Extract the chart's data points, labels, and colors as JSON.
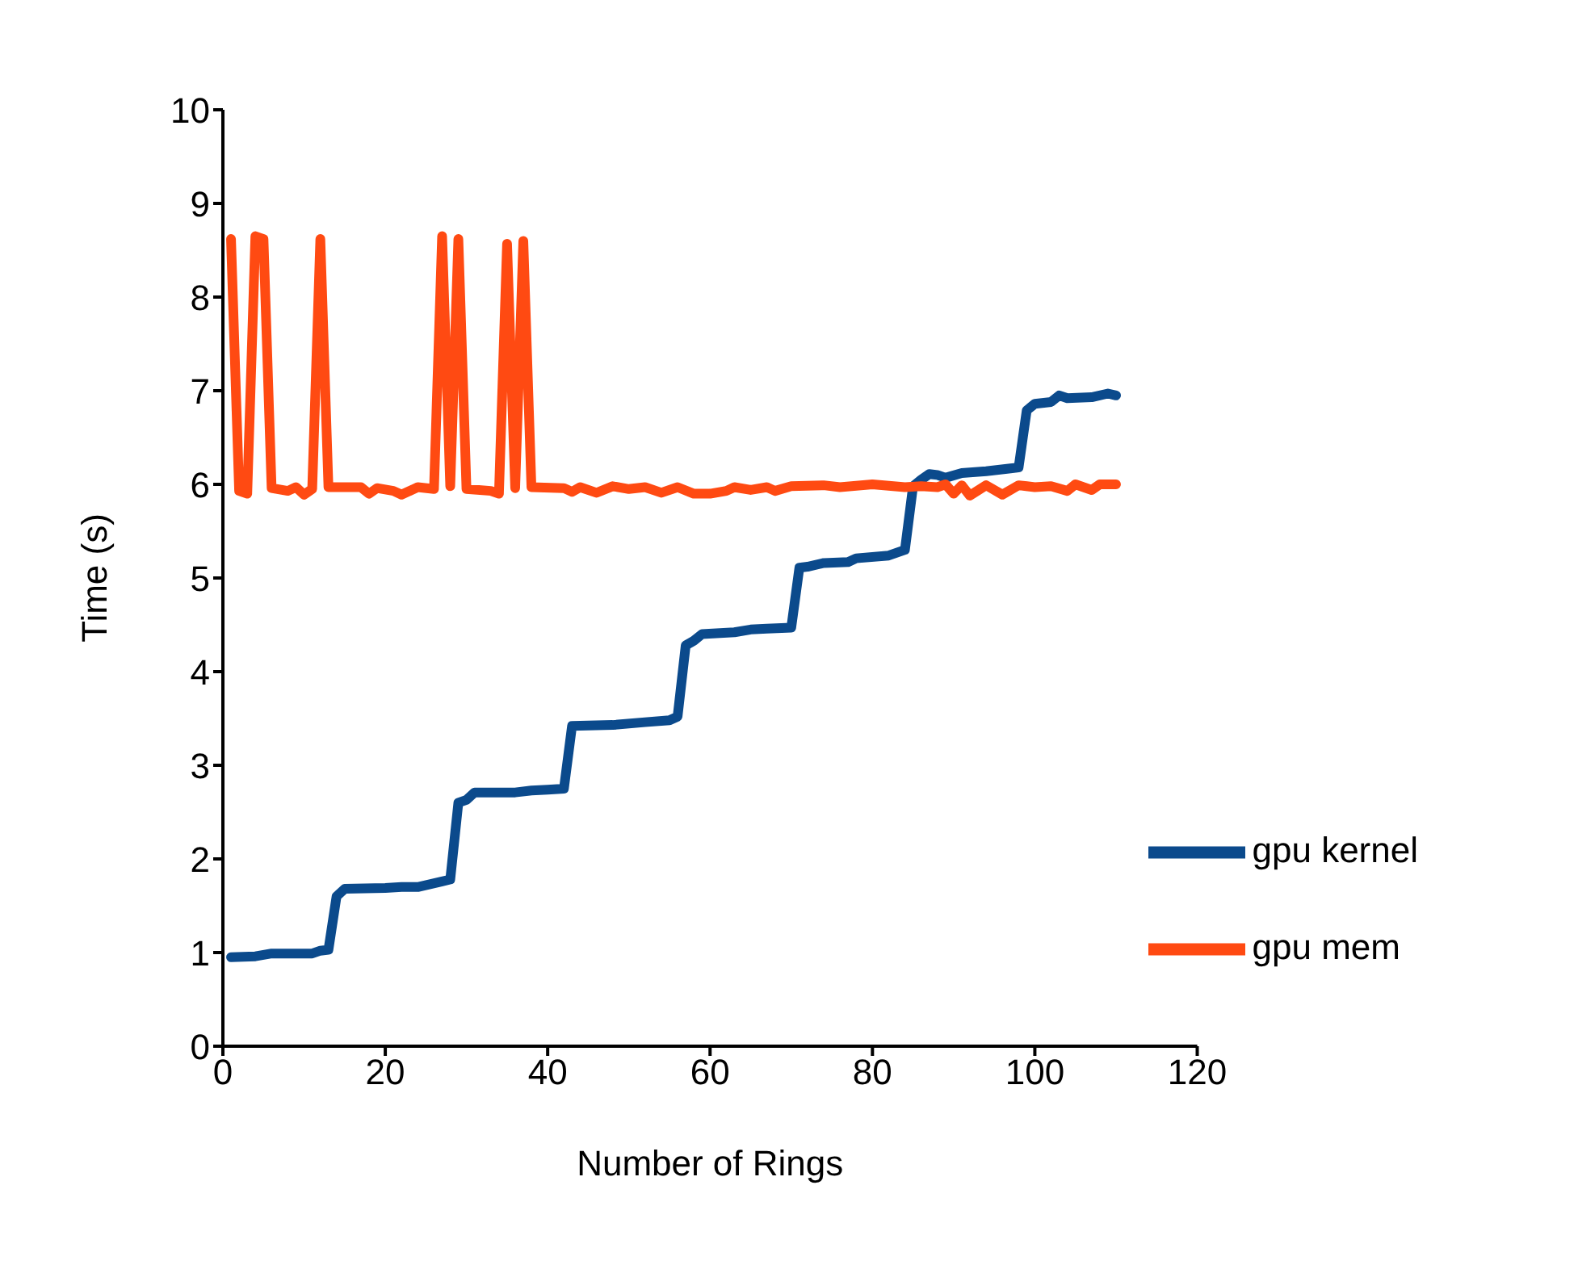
{
  "chart_data": {
    "type": "line",
    "xlabel": "Number of Rings",
    "ylabel": "Time (s)",
    "xlim": [
      0,
      120
    ],
    "xticks": [
      0,
      20,
      40,
      60,
      80,
      100,
      120
    ],
    "ylim": [
      0,
      10
    ],
    "yticks": [
      0,
      1,
      2,
      3,
      4,
      5,
      6,
      7,
      8,
      9,
      10
    ],
    "grid": false,
    "legend": "bottom right",
    "marker": "none",
    "line_style": "solid",
    "series": [
      {
        "name": "gpu kernel",
        "color": "#0b4a8c",
        "x": [
          1,
          4,
          6,
          11,
          12,
          13,
          14,
          15,
          20,
          22,
          24,
          27,
          28,
          29,
          30,
          31,
          36,
          38,
          40,
          42,
          43,
          48,
          52,
          55,
          56,
          57,
          58,
          59,
          63,
          65,
          67,
          70,
          71,
          72,
          74,
          77,
          78,
          82,
          84,
          85,
          86,
          87,
          88,
          89,
          91,
          94,
          97,
          98,
          99,
          100,
          102,
          103,
          104,
          107,
          109,
          110
        ],
        "values": [
          0.95,
          0.96,
          0.99,
          0.99,
          1.02,
          1.03,
          1.6,
          1.68,
          1.69,
          1.7,
          1.7,
          1.76,
          1.78,
          2.6,
          2.63,
          2.71,
          2.71,
          2.73,
          2.74,
          2.75,
          3.42,
          3.43,
          3.46,
          3.48,
          3.52,
          4.28,
          4.33,
          4.4,
          4.42,
          4.45,
          4.46,
          4.47,
          5.11,
          5.12,
          5.16,
          5.17,
          5.21,
          5.24,
          5.3,
          5.98,
          6.05,
          6.11,
          6.1,
          6.07,
          6.12,
          6.14,
          6.17,
          6.18,
          6.79,
          6.86,
          6.88,
          6.95,
          6.92,
          6.93,
          6.97,
          6.95
        ]
      },
      {
        "name": "gpu mem",
        "color": "#ff4a12",
        "x": [
          1,
          2,
          3,
          4,
          5,
          6,
          8,
          9,
          10,
          11,
          12,
          13,
          17,
          18,
          19,
          21,
          22,
          24,
          26,
          27,
          28,
          29,
          30,
          33,
          34,
          35,
          36,
          37,
          38,
          42,
          43,
          44,
          46,
          48,
          50,
          52,
          54,
          56,
          58,
          60,
          62,
          63,
          65,
          67,
          68,
          70,
          74,
          76,
          80,
          84,
          86,
          88,
          89,
          90,
          91,
          92,
          94,
          96,
          98,
          100,
          102,
          104,
          105,
          107,
          108,
          110
        ],
        "values": [
          8.62,
          5.93,
          5.9,
          8.65,
          8.62,
          5.96,
          5.93,
          5.97,
          5.89,
          5.95,
          8.62,
          5.97,
          5.97,
          5.9,
          5.96,
          5.93,
          5.89,
          5.97,
          5.95,
          8.65,
          5.98,
          8.62,
          5.95,
          5.93,
          5.9,
          8.57,
          5.96,
          8.6,
          5.97,
          5.96,
          5.92,
          5.97,
          5.91,
          5.98,
          5.95,
          5.97,
          5.91,
          5.97,
          5.9,
          5.9,
          5.93,
          5.97,
          5.94,
          5.97,
          5.93,
          5.98,
          5.99,
          5.97,
          6.0,
          5.97,
          5.98,
          5.97,
          6.0,
          5.9,
          5.99,
          5.88,
          5.99,
          5.89,
          5.99,
          5.97,
          5.98,
          5.93,
          6.0,
          5.94,
          6.0,
          6.0
        ]
      }
    ]
  }
}
